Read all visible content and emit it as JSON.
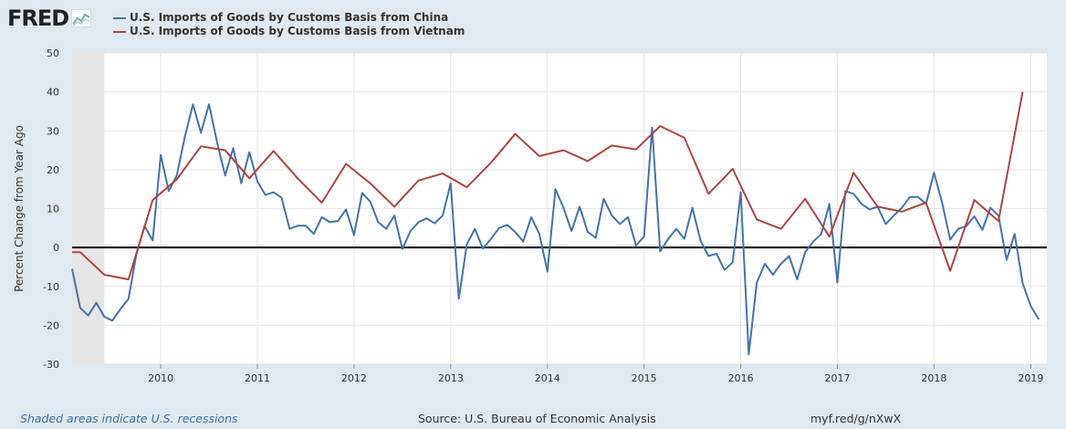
{
  "brand": {
    "name": "FRED"
  },
  "footer": {
    "recession_note": "Shaded areas indicate U.S. recessions",
    "source": "Source: U.S. Bureau of Economic Analysis",
    "url": "myf.red/g/nXwX"
  },
  "chart_data": {
    "type": "line",
    "title": "",
    "ylabel": "Percent Change from Year Ago",
    "xlabel": "",
    "ylim": [
      -30,
      50
    ],
    "yticks": [
      -30,
      -20,
      -10,
      0,
      10,
      20,
      30,
      40,
      50
    ],
    "xlim": [
      "2009-02",
      "2019-03"
    ],
    "xticks": [
      "2010",
      "2011",
      "2012",
      "2013",
      "2014",
      "2015",
      "2016",
      "2017",
      "2018",
      "2019"
    ],
    "grid": true,
    "legend_placement": "top-left",
    "zero_line": true,
    "recession": {
      "start": "2009-02",
      "end": "2009-06"
    },
    "series": [
      {
        "name": "U.S. Imports of Goods by Customs Basis from China",
        "color": "#4572a7",
        "data": [
          [
            "2009-02",
            -5.5
          ],
          [
            "2009-03",
            -15.5
          ],
          [
            "2009-04",
            -17.5
          ],
          [
            "2009-05",
            -14.2
          ],
          [
            "2009-06",
            -17.8
          ],
          [
            "2009-07",
            -18.8
          ],
          [
            "2009-08",
            -15.8
          ],
          [
            "2009-09",
            -13.2
          ],
          [
            "2009-10",
            -1.5
          ],
          [
            "2009-11",
            5.5
          ],
          [
            "2009-12",
            1.8
          ],
          [
            "2010-01",
            23.8
          ],
          [
            "2010-02",
            14.5
          ],
          [
            "2010-03",
            18.5
          ],
          [
            "2010-04",
            28.5
          ],
          [
            "2010-05",
            36.8
          ],
          [
            "2010-06",
            29.5
          ],
          [
            "2010-07",
            36.8
          ],
          [
            "2010-08",
            27.0
          ],
          [
            "2010-09",
            18.5
          ],
          [
            "2010-10",
            25.5
          ],
          [
            "2010-11",
            16.5
          ],
          [
            "2010-12",
            24.5
          ],
          [
            "2011-01",
            17.0
          ],
          [
            "2011-02",
            13.5
          ],
          [
            "2011-03",
            14.2
          ],
          [
            "2011-04",
            12.8
          ],
          [
            "2011-05",
            4.8
          ],
          [
            "2011-06",
            5.6
          ],
          [
            "2011-07",
            5.6
          ],
          [
            "2011-08",
            3.5
          ],
          [
            "2011-09",
            7.8
          ],
          [
            "2011-10",
            6.5
          ],
          [
            "2011-11",
            6.8
          ],
          [
            "2011-12",
            9.8
          ],
          [
            "2012-01",
            3.2
          ],
          [
            "2012-02",
            14.0
          ],
          [
            "2012-03",
            11.8
          ],
          [
            "2012-04",
            6.5
          ],
          [
            "2012-05",
            4.8
          ],
          [
            "2012-06",
            8.2
          ],
          [
            "2012-07",
            -0.4
          ],
          [
            "2012-08",
            4.2
          ],
          [
            "2012-09",
            6.5
          ],
          [
            "2012-10",
            7.5
          ],
          [
            "2012-11",
            6.2
          ],
          [
            "2012-12",
            8.2
          ],
          [
            "2013-01",
            16.5
          ],
          [
            "2013-02",
            -13.2
          ],
          [
            "2013-03",
            0.8
          ],
          [
            "2013-04",
            4.8
          ],
          [
            "2013-05",
            -0.3
          ],
          [
            "2013-06",
            2.2
          ],
          [
            "2013-07",
            5.0
          ],
          [
            "2013-08",
            5.8
          ],
          [
            "2013-09",
            4.0
          ],
          [
            "2013-10",
            1.5
          ],
          [
            "2013-11",
            7.8
          ],
          [
            "2013-12",
            3.5
          ],
          [
            "2014-01",
            -6.2
          ],
          [
            "2014-02",
            15.0
          ],
          [
            "2014-03",
            10.2
          ],
          [
            "2014-04",
            4.2
          ],
          [
            "2014-05",
            10.5
          ],
          [
            "2014-06",
            4.0
          ],
          [
            "2014-07",
            2.5
          ],
          [
            "2014-08",
            12.5
          ],
          [
            "2014-09",
            8.2
          ],
          [
            "2014-10",
            6.0
          ],
          [
            "2014-11",
            7.8
          ],
          [
            "2014-12",
            0.5
          ],
          [
            "2015-01",
            2.8
          ],
          [
            "2015-02",
            30.8
          ],
          [
            "2015-03",
            -1.0
          ],
          [
            "2015-04",
            2.2
          ],
          [
            "2015-05",
            4.8
          ],
          [
            "2015-06",
            2.2
          ],
          [
            "2015-07",
            10.2
          ],
          [
            "2015-08",
            1.8
          ],
          [
            "2015-09",
            -2.2
          ],
          [
            "2015-10",
            -1.6
          ],
          [
            "2015-11",
            -5.8
          ],
          [
            "2015-12",
            -3.8
          ],
          [
            "2016-01",
            14.2
          ],
          [
            "2016-02",
            -27.5
          ],
          [
            "2016-03",
            -9.0
          ],
          [
            "2016-04",
            -4.2
          ],
          [
            "2016-05",
            -7.0
          ],
          [
            "2016-06",
            -4.2
          ],
          [
            "2016-07",
            -2.2
          ],
          [
            "2016-08",
            -8.2
          ],
          [
            "2016-09",
            -1.2
          ],
          [
            "2016-10",
            1.5
          ],
          [
            "2016-11",
            3.5
          ],
          [
            "2016-12",
            11.2
          ],
          [
            "2017-01",
            -9.0
          ],
          [
            "2017-02",
            14.5
          ],
          [
            "2017-03",
            13.8
          ],
          [
            "2017-04",
            11.2
          ],
          [
            "2017-05",
            9.8
          ],
          [
            "2017-06",
            10.5
          ],
          [
            "2017-07",
            6.0
          ],
          [
            "2017-08",
            8.2
          ],
          [
            "2017-09",
            10.2
          ],
          [
            "2017-10",
            13.0
          ],
          [
            "2017-11",
            13.0
          ],
          [
            "2017-12",
            11.2
          ],
          [
            "2018-01",
            19.2
          ],
          [
            "2018-02",
            11.5
          ],
          [
            "2018-03",
            2.0
          ],
          [
            "2018-04",
            4.8
          ],
          [
            "2018-05",
            5.5
          ],
          [
            "2018-06",
            8.0
          ],
          [
            "2018-07",
            4.5
          ],
          [
            "2018-08",
            10.2
          ],
          [
            "2018-09",
            8.2
          ],
          [
            "2018-10",
            -3.2
          ],
          [
            "2018-11",
            3.5
          ],
          [
            "2018-12",
            -9.2
          ],
          [
            "2019-01",
            -15.0
          ],
          [
            "2019-02",
            -18.5
          ]
        ]
      },
      {
        "name": "U.S. Imports of Goods by Customs Basis from Vietnam",
        "color": "#aa4643",
        "data": [
          [
            "2009-02",
            -1.2
          ],
          [
            "2009-03",
            -1.2
          ],
          [
            "2009-06",
            -7.0
          ],
          [
            "2009-09",
            -8.2
          ],
          [
            "2009-12",
            12.2
          ],
          [
            "2010-03",
            17.5
          ],
          [
            "2010-06",
            26.0
          ],
          [
            "2010-09",
            25.0
          ],
          [
            "2010-12",
            17.8
          ],
          [
            "2011-03",
            24.8
          ],
          [
            "2011-06",
            17.8
          ],
          [
            "2011-09",
            11.5
          ],
          [
            "2011-12",
            21.5
          ],
          [
            "2012-03",
            16.5
          ],
          [
            "2012-06",
            10.5
          ],
          [
            "2012-09",
            17.2
          ],
          [
            "2012-12",
            19.0
          ],
          [
            "2013-03",
            15.5
          ],
          [
            "2013-06",
            21.8
          ],
          [
            "2013-09",
            29.2
          ],
          [
            "2013-12",
            23.5
          ],
          [
            "2014-03",
            25.0
          ],
          [
            "2014-06",
            22.2
          ],
          [
            "2014-09",
            26.2
          ],
          [
            "2014-12",
            25.2
          ],
          [
            "2015-03",
            31.2
          ],
          [
            "2015-06",
            28.2
          ],
          [
            "2015-09",
            13.8
          ],
          [
            "2015-12",
            20.2
          ],
          [
            "2016-03",
            7.2
          ],
          [
            "2016-06",
            4.8
          ],
          [
            "2016-09",
            12.5
          ],
          [
            "2016-12",
            2.8
          ],
          [
            "2017-03",
            19.2
          ],
          [
            "2017-06",
            10.5
          ],
          [
            "2017-09",
            9.2
          ],
          [
            "2017-12",
            11.5
          ],
          [
            "2018-03",
            -6.0
          ],
          [
            "2018-06",
            12.2
          ],
          [
            "2018-09",
            6.8
          ],
          [
            "2018-12",
            40.0
          ]
        ]
      }
    ]
  }
}
